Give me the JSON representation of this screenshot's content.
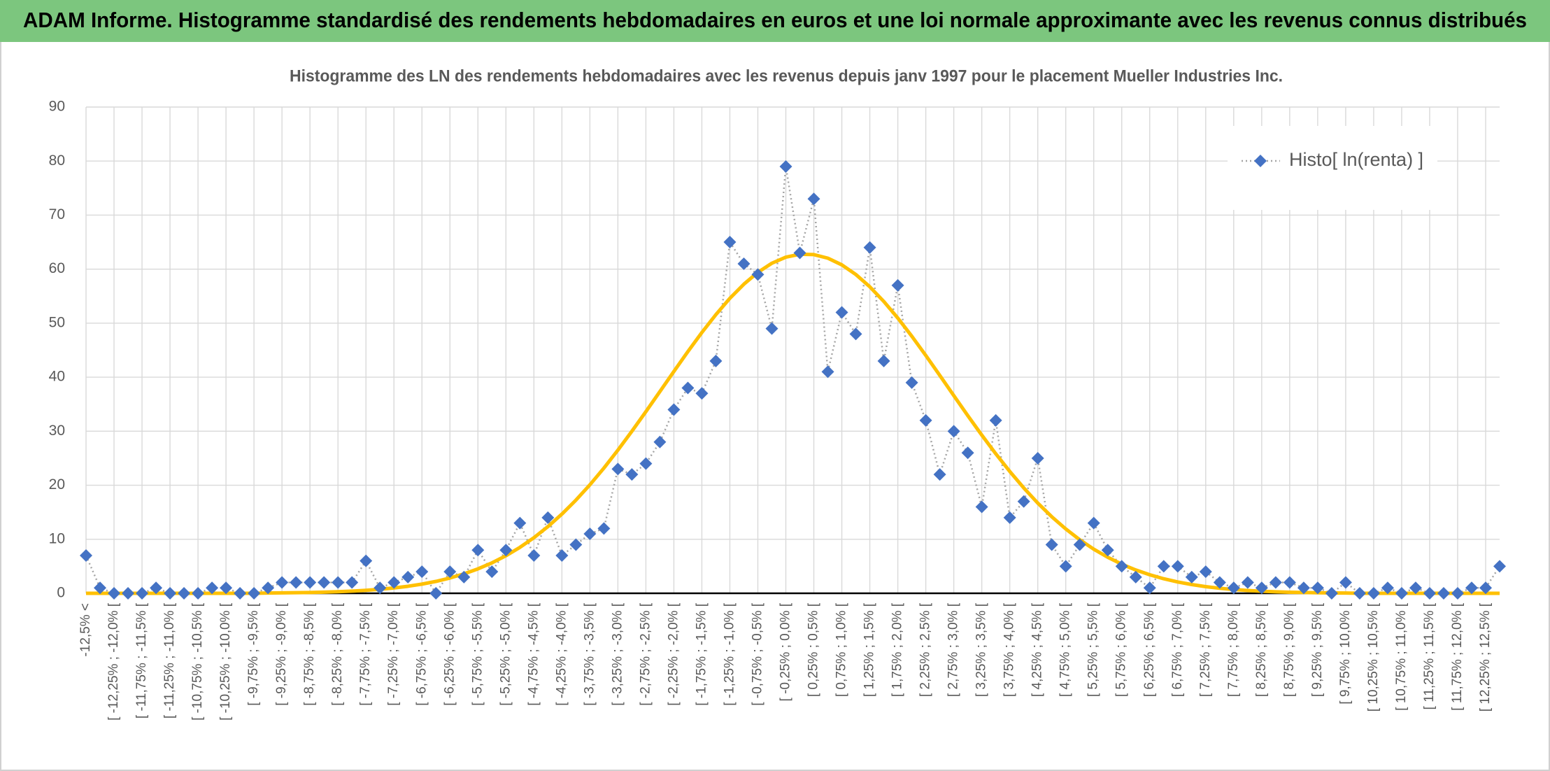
{
  "chart_data": {
    "type": "line",
    "title": "ADAM Informe. Histogramme standardisé des rendements hebdomadaires en euros et une loi normale approximante avec les revenus connus distribués",
    "subtitle": "Histogramme des LN des rendements hebdomadaires avec les revenus depuis janv 1997 pour le placement Mueller Industries Inc.",
    "categories": [
      "-12,5% <",
      null,
      "[ -12,25% ; -12,0% [",
      null,
      "[ -11,75% ; -11,5% [",
      null,
      "[ -11,25% ; -11,0% [",
      null,
      "[ -10,75% ; -10,5% [",
      null,
      "[ -10,25% ; -10,0% [",
      null,
      "[ -9,75% ; -9,5% [",
      null,
      "[ -9,25% ; -9,0% [",
      null,
      "[ -8,75% ; -8,5% [",
      null,
      "[ -8,25% ; -8,0% [",
      null,
      "[ -7,75% ; -7,5% [",
      null,
      "[ -7,25% ; -7,0% [",
      null,
      "[ -6,75% ; -6,5% [",
      null,
      "[ -6,25% ; -6,0% [",
      null,
      "[ -5,75% ; -5,5% [",
      null,
      "[ -5,25% ; -5,0% [",
      null,
      "[ -4,75% ; -4,5% [",
      null,
      "[ -4,25% ; -4,0% [",
      null,
      "[ -3,75% ; -3,5% [",
      null,
      "[ -3,25% ; -3,0% [",
      null,
      "[ -2,75% ; -2,5% [",
      null,
      "[ -2,25% ; -2,0% [",
      null,
      "[ -1,75% ; -1,5% [",
      null,
      "[ -1,25% ; -1,0% [",
      null,
      "[ -0,75% ; -0,5% [",
      null,
      "[ -0,25% ; 0,0% [",
      null,
      "[ 0,25% ; 0,5% [",
      null,
      "[ 0,75% ; 1,0% [",
      null,
      "[ 1,25% ; 1,5% [",
      null,
      "[ 1,75% ; 2,0% [",
      null,
      "[ 2,25% ; 2,5% [",
      null,
      "[ 2,75% ; 3,0% [",
      null,
      "[ 3,25% ; 3,5% [",
      null,
      "[ 3,75% ; 4,0% [",
      null,
      "[ 4,25% ; 4,5% [",
      null,
      "[ 4,75% ; 5,0% [",
      null,
      "[ 5,25% ; 5,5% [",
      null,
      "[ 5,75% ; 6,0% [",
      null,
      "[ 6,25% ; 6,5% [",
      null,
      "[ 6,75% ; 7,0% [",
      null,
      "[ 7,25% ; 7,5% [",
      null,
      "[ 7,75% ; 8,0% [",
      null,
      "[ 8,25% ; 8,5% [",
      null,
      "[ 8,75% ; 9,0% [",
      null,
      "[ 9,25% ; 9,5% [",
      null,
      "[ 9,75% ; 10,0% [",
      null,
      "[ 10,25% ; 10,5% [",
      null,
      "[ 10,75% ; 11,0% [",
      null,
      "[ 11,25% ; 11,5% [",
      null,
      "[ 11,75% ; 12,0% [",
      null,
      "[ 12,25% ; 12,5% [",
      null
    ],
    "series": [
      {
        "name": "Histo[ ln(renta) ]",
        "color": "#4472c4",
        "line_color": "#a5a5a5",
        "marker": "diamond",
        "line_style": "dotted",
        "values": [
          7,
          1,
          0,
          0,
          0,
          1,
          0,
          0,
          0,
          1,
          1,
          0,
          0,
          1,
          2,
          2,
          2,
          2,
          2,
          2,
          6,
          1,
          2,
          3,
          4,
          0,
          4,
          3,
          8,
          4,
          8,
          13,
          7,
          14,
          7,
          9,
          11,
          12,
          23,
          22,
          24,
          28,
          34,
          38,
          37,
          43,
          65,
          61,
          59,
          49,
          79,
          63,
          73,
          41,
          52,
          48,
          64,
          43,
          57,
          39,
          32,
          22,
          30,
          26,
          16,
          32,
          14,
          17,
          25,
          9,
          5,
          9,
          13,
          8,
          5,
          3,
          1,
          5,
          5,
          3,
          4,
          2,
          1,
          2,
          1,
          2,
          2,
          1,
          1,
          0,
          2,
          0,
          0,
          1,
          0,
          1,
          0,
          0,
          0,
          1,
          1,
          5
        ]
      },
      {
        "color": "#ffc000",
        "line_style": "solid",
        "values": [
          0,
          0,
          0,
          0,
          0,
          0,
          0,
          0,
          0,
          0,
          0,
          0,
          0,
          0.05,
          0.08,
          0.11,
          0.15,
          0.21,
          0.29,
          0.4,
          0.55,
          0.74,
          0.99,
          1.3,
          1.7,
          2.2,
          2.83,
          3.59,
          4.52,
          5.63,
          6.95,
          8.5,
          10.29,
          12.34,
          14.66,
          17.24,
          20.08,
          23.17,
          26.5,
          29.99,
          33.62,
          37.33,
          41.06,
          44.74,
          48.27,
          51.57,
          54.6,
          57.21,
          59.4,
          61.09,
          62.21,
          62.75,
          62.69,
          62.03,
          60.79,
          59.01,
          56.73,
          54.01,
          50.94,
          47.58,
          44.02,
          40.33,
          36.59,
          32.89,
          29.28,
          25.82,
          22.55,
          19.5,
          16.7,
          14.17,
          11.91,
          9.91,
          8.17,
          6.67,
          5.39,
          4.32,
          3.43,
          2.69,
          2.1,
          1.62,
          1.23,
          0.93,
          0.7,
          0.52,
          0.38,
          0.28,
          0.2,
          0.14,
          0.1,
          0.07,
          0.05,
          0,
          0,
          0,
          0,
          0,
          0,
          0,
          0,
          0,
          0,
          0
        ]
      }
    ],
    "ylim": [
      0,
      90
    ],
    "yticks": [
      0,
      10,
      20,
      30,
      40,
      50,
      60,
      70,
      80,
      90
    ],
    "grid": true,
    "legend": "top-right",
    "header_color": "#7cc67e"
  }
}
